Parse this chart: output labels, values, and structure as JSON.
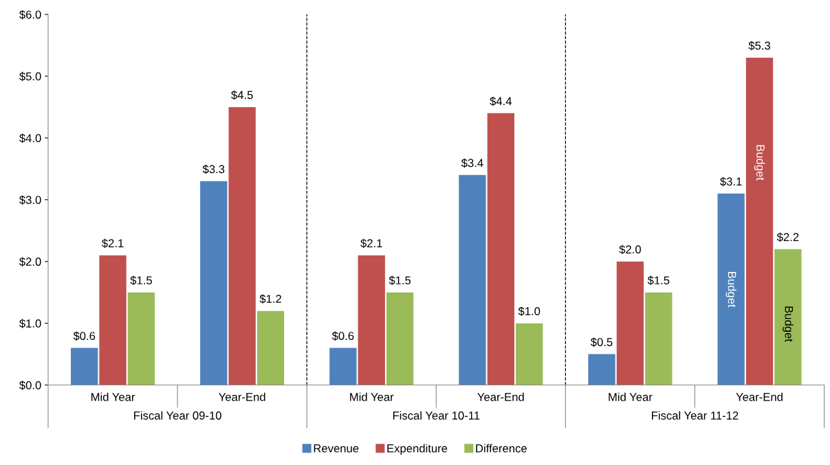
{
  "chart_data": {
    "type": "bar",
    "categories": [
      "Mid Year",
      "Year-End",
      "Mid Year",
      "Year-End",
      "Mid Year",
      "Year-End"
    ],
    "series": [
      {
        "name": "Revenue",
        "color": "#4f81bd",
        "values": [
          0.6,
          3.3,
          0.6,
          3.4,
          0.5,
          3.1
        ],
        "value_labels": [
          "$0.6",
          "$3.3",
          "$0.6",
          "$3.4",
          "$0.5",
          "$3.1"
        ]
      },
      {
        "name": "Expenditure",
        "color": "#c0504d",
        "values": [
          2.1,
          4.5,
          2.1,
          4.4,
          2.0,
          5.3
        ],
        "value_labels": [
          "$2.1",
          "$4.5",
          "$2.1",
          "$4.4",
          "$2.0",
          "$5.3"
        ]
      },
      {
        "name": "Difference",
        "color": "#9bbb59",
        "values": [
          1.5,
          1.2,
          1.5,
          1.0,
          1.5,
          2.2
        ],
        "value_labels": [
          "$1.5",
          "$1.2",
          "$1.5",
          "$1.0",
          "$1.5",
          "$2.2"
        ]
      }
    ],
    "ylim": [
      0,
      6
    ],
    "yticks": [
      {
        "value": 0,
        "label": "$0.0"
      },
      {
        "value": 1,
        "label": "$1.0"
      },
      {
        "value": 2,
        "label": "$2.0"
      },
      {
        "value": 3,
        "label": "$3.0"
      },
      {
        "value": 4,
        "label": "$4.0"
      },
      {
        "value": 5,
        "label": "$5.0"
      },
      {
        "value": 6,
        "label": "$6.0"
      }
    ],
    "annotations": [
      "Fiscal Year 09-10",
      "Fiscal Year 10-11",
      "Fiscal Year 11-12",
      "Budget",
      "Budget",
      "Budget"
    ],
    "grid": false,
    "legend": "bottom"
  }
}
